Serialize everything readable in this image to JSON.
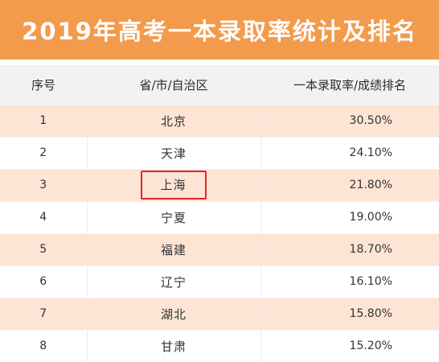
{
  "title": "2019年高考一本录取率统计及排名",
  "colors": {
    "banner": "#f39b4c",
    "row_highlight": "#fde4d4",
    "header_bg": "#f2f2f2",
    "box_outline": "#e0262a"
  },
  "table": {
    "headers": [
      "序号",
      "省/市/自治区",
      "一本录取率/成绩排名"
    ],
    "rows": [
      {
        "rank": "1",
        "province": "北京",
        "rate": "30.50%"
      },
      {
        "rank": "2",
        "province": "天津",
        "rate": "24.10%"
      },
      {
        "rank": "3",
        "province": "上海",
        "rate": "21.80%",
        "outlined": true
      },
      {
        "rank": "4",
        "province": "宁夏",
        "rate": "19.00%"
      },
      {
        "rank": "5",
        "province": "福建",
        "rate": "18.70%"
      },
      {
        "rank": "6",
        "province": "辽宁",
        "rate": "16.10%"
      },
      {
        "rank": "7",
        "province": "湖北",
        "rate": "15.80%"
      },
      {
        "rank": "8",
        "province": "甘肃",
        "rate": "15.20%"
      }
    ]
  }
}
